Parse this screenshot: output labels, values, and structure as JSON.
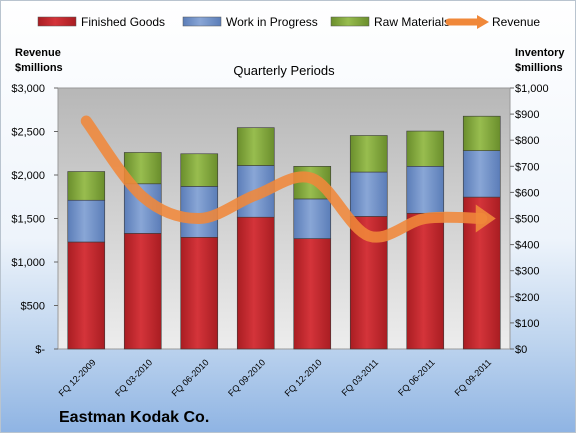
{
  "chart_data": {
    "type": "bar",
    "stacked": true,
    "title": "Quarterly Periods",
    "company": "Eastman Kodak Co.",
    "y_left_label": [
      "Revenue",
      "$millions"
    ],
    "y_right_label": [
      "Inventory",
      "$millions"
    ],
    "categories": [
      "FQ 12-2009",
      "FQ 03-2010",
      "FQ 06-2010",
      "FQ 09-2010",
      "FQ 12-2010",
      "FQ 03-2011",
      "FQ 06-2011",
      "FQ 09-2011"
    ],
    "series": [
      {
        "name": "Finished Goods",
        "axis": "right",
        "color": "#c0262a",
        "values": [
          410,
          443,
          428,
          505,
          423,
          508,
          520,
          582
        ]
      },
      {
        "name": "Work in Progress",
        "axis": "right",
        "color": "#6f8fc8",
        "values": [
          160,
          190,
          195,
          198,
          152,
          170,
          180,
          178
        ]
      },
      {
        "name": "Raw Materials",
        "axis": "right",
        "color": "#7fa33a",
        "values": [
          110,
          120,
          125,
          145,
          125,
          140,
          135,
          132
        ]
      },
      {
        "name": "Revenue",
        "axis": "left",
        "type": "line",
        "color": "#f0883a",
        "values": [
          2620,
          1750,
          1500,
          1770,
          1960,
          1300,
          1500,
          1500
        ]
      }
    ],
    "y_left": {
      "min": 0,
      "max": 3000,
      "step": 500,
      "tick_labels": [
        "$-",
        "$500",
        "$1,000",
        "$1,500",
        "$2,000",
        "$2,500",
        "$3,000"
      ]
    },
    "y_right": {
      "min": 0,
      "max": 1000,
      "step": 100,
      "tick_labels": [
        "$0",
        "$100",
        "$200",
        "$300",
        "$400",
        "$500",
        "$600",
        "$700",
        "$800",
        "$900",
        "$1,000"
      ]
    },
    "legend_position": "top",
    "grid": false
  }
}
